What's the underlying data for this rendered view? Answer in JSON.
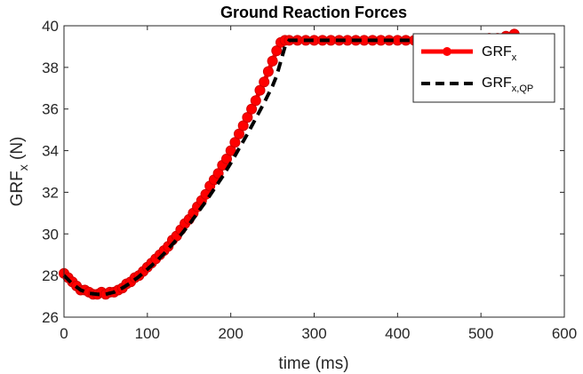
{
  "chart_data": {
    "type": "line",
    "title": "Ground Reaction Forces",
    "xlabel": "time (ms)",
    "ylabel": "GRF",
    "ylabel_sub": "x",
    "ylabel_unit": " (N)",
    "xlim": [
      0,
      600
    ],
    "ylim": [
      26,
      40
    ],
    "xticks": [
      0,
      100,
      200,
      300,
      400,
      500,
      600
    ],
    "yticks": [
      26,
      28,
      30,
      32,
      34,
      36,
      38,
      40
    ],
    "grid": false,
    "legend_position": "top-right",
    "series": [
      {
        "name": "GRF",
        "name_sub": "x",
        "color": "#ff0000",
        "style": "solid-with-markers",
        "x": [
          0,
          5,
          10,
          15,
          20,
          25,
          30,
          35,
          40,
          45,
          50,
          55,
          60,
          65,
          70,
          75,
          80,
          85,
          90,
          95,
          100,
          105,
          110,
          115,
          120,
          125,
          130,
          135,
          140,
          145,
          150,
          155,
          160,
          165,
          170,
          175,
          180,
          185,
          190,
          195,
          200,
          205,
          210,
          215,
          220,
          225,
          230,
          235,
          240,
          245,
          250,
          255,
          260,
          265,
          270,
          280,
          290,
          300,
          310,
          320,
          330,
          340,
          350,
          360,
          370,
          380,
          390,
          400,
          410,
          420,
          430,
          440,
          450,
          460,
          470,
          480,
          490,
          500,
          510,
          520,
          530,
          540
        ],
        "y": [
          28.1,
          27.9,
          27.7,
          27.5,
          27.3,
          27.3,
          27.2,
          27.1,
          27.1,
          27.2,
          27.1,
          27.2,
          27.2,
          27.3,
          27.4,
          27.6,
          27.7,
          27.9,
          28.0,
          28.2,
          28.4,
          28.6,
          28.8,
          29.0,
          29.2,
          29.4,
          29.7,
          29.9,
          30.2,
          30.5,
          30.7,
          31.0,
          31.3,
          31.6,
          31.9,
          32.3,
          32.6,
          32.9,
          33.3,
          33.6,
          34.0,
          34.4,
          34.8,
          35.2,
          35.6,
          36.0,
          36.4,
          36.9,
          37.3,
          37.8,
          38.3,
          38.8,
          39.2,
          39.3,
          39.3,
          39.3,
          39.3,
          39.3,
          39.3,
          39.3,
          39.3,
          39.3,
          39.3,
          39.3,
          39.3,
          39.3,
          39.3,
          39.3,
          39.3,
          39.3,
          39.3,
          39.3,
          39.3,
          39.3,
          39.3,
          39.3,
          39.3,
          39.3,
          39.4,
          39.4,
          39.5,
          39.6
        ]
      },
      {
        "name": "GRF",
        "name_sub": "x,QP",
        "color": "#000000",
        "style": "dashed",
        "x": [
          0,
          10,
          20,
          30,
          40,
          50,
          60,
          70,
          80,
          90,
          100,
          110,
          120,
          130,
          140,
          150,
          160,
          170,
          180,
          190,
          200,
          210,
          220,
          230,
          240,
          250,
          255,
          260,
          265,
          270,
          300,
          350,
          400,
          450,
          500,
          540
        ],
        "y": [
          28.0,
          27.6,
          27.3,
          27.15,
          27.1,
          27.1,
          27.2,
          27.4,
          27.65,
          27.95,
          28.3,
          28.65,
          29.05,
          29.5,
          29.95,
          30.45,
          31.0,
          31.55,
          32.15,
          32.75,
          33.4,
          34.1,
          34.8,
          35.55,
          36.3,
          37.1,
          37.6,
          38.3,
          39.0,
          39.3,
          39.3,
          39.3,
          39.3,
          39.3,
          39.3,
          39.3
        ]
      }
    ]
  }
}
